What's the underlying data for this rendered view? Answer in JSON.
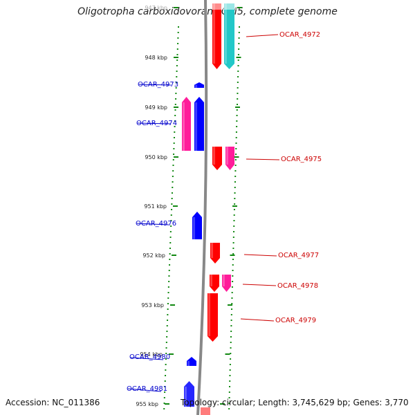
{
  "title": "Oligotropha carboxidovorans OM5, complete genome",
  "accession": "Accession: NC_011386",
  "summary": "Topology: circular; Length: 3,745,629 bp; Genes: 3,770",
  "kbp_labels": [
    "947 kbp",
    "948 kbp",
    "949 kbp",
    "950 kbp",
    "951 kbp",
    "952 kbp",
    "953 kbp",
    "954 kbp",
    "955 kbp"
  ],
  "genes": [
    {
      "id": "OCAR_4972",
      "label": "OCAR_4972",
      "strand": "+",
      "color": "#ff0000"
    },
    {
      "id": "OCAR_4972b",
      "label": "",
      "strand": "+",
      "color": "#22c8c8"
    },
    {
      "id": "OCAR_4973",
      "label": "OCAR_4973",
      "strand": "-",
      "color": "#0000ff"
    },
    {
      "id": "OCAR_4974",
      "label": "OCAR_4974",
      "strand": "-",
      "color": "#0000ff"
    },
    {
      "id": "OCAR_4974b",
      "label": "",
      "strand": "-",
      "color": "#ff1c9a"
    },
    {
      "id": "OCAR_4975",
      "label": "OCAR_4975",
      "strand": "+",
      "color": "#ff0000"
    },
    {
      "id": "OCAR_4975b",
      "label": "",
      "strand": "+",
      "color": "#ff1c9a"
    },
    {
      "id": "OCAR_4976",
      "label": "OCAR_4976",
      "strand": "-",
      "color": "#0000ff"
    },
    {
      "id": "OCAR_4977",
      "label": "OCAR_4977",
      "strand": "+",
      "color": "#ff0000"
    },
    {
      "id": "OCAR_4978",
      "label": "OCAR_4978",
      "strand": "+",
      "color": "#ff0000"
    },
    {
      "id": "OCAR_4978b",
      "label": "",
      "strand": "+",
      "color": "#ff1c9a"
    },
    {
      "id": "OCAR_4979",
      "label": "OCAR_4979",
      "strand": "+",
      "color": "#ff0000"
    },
    {
      "id": "OCAR_4980",
      "label": "OCAR_4980",
      "strand": "-",
      "color": "#0000ff"
    },
    {
      "id": "OCAR_4981",
      "label": "OCAR_4981",
      "strand": "-",
      "color": "#0000ff"
    }
  ],
  "colors": {
    "forward": "#ff0000",
    "reverse": "#0000ff",
    "label_forward": "#cc0000",
    "label_reverse": "#0000cc",
    "backbone": "#888888",
    "ticks": "#118811"
  }
}
